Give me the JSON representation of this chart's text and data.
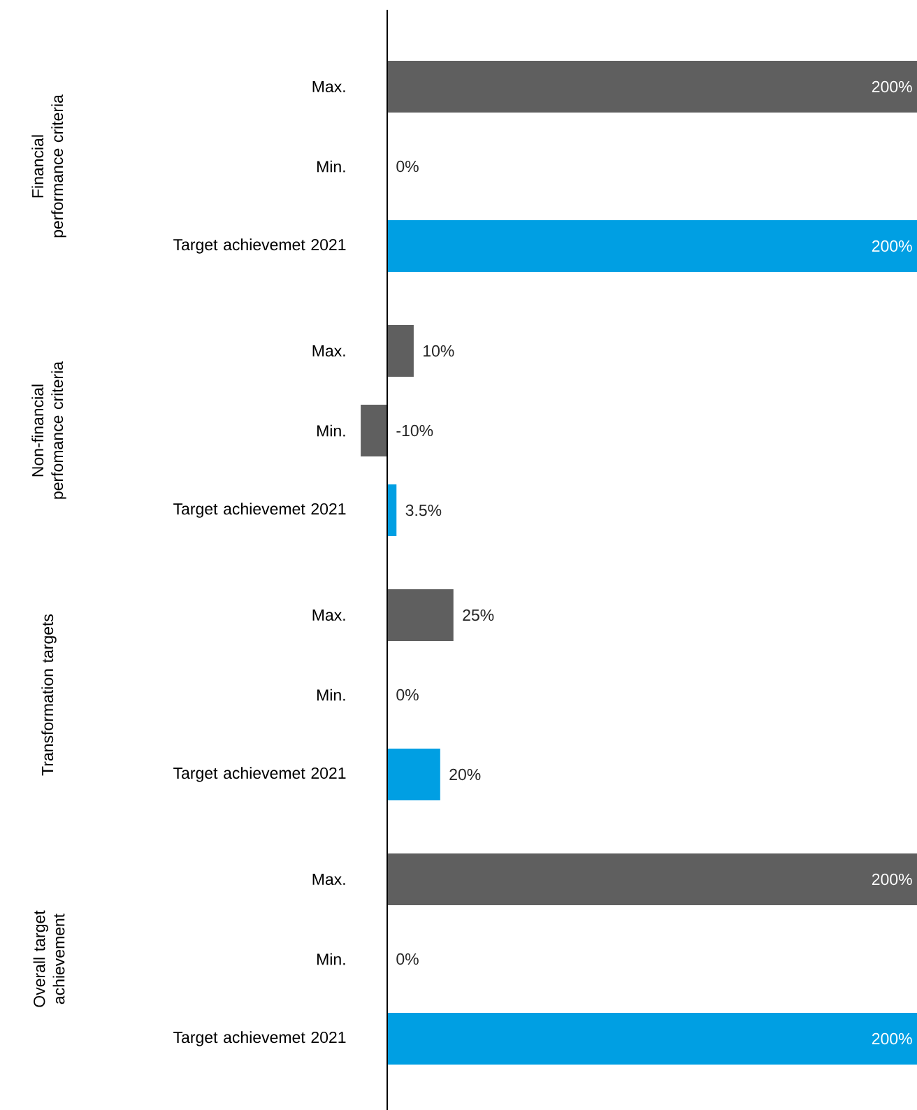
{
  "chart_data": {
    "type": "bar",
    "orientation": "horizontal",
    "categories": [
      "Max.",
      "Min.",
      "Target achievemet 2021",
      "Max.",
      "Min.",
      "Target achievemet 2021",
      "Max.",
      "Min.",
      "Target achievemet 2021",
      "Max.",
      "Min.",
      "Target achievemet 2021"
    ],
    "values": [
      200,
      0,
      200,
      10,
      -10,
      3.5,
      25,
      0,
      20,
      200,
      0,
      200
    ],
    "value_labels": [
      "200%",
      "0%",
      "200%",
      "10%",
      "-10%",
      "3.5%",
      "25%",
      "0%",
      "20%",
      "200%",
      "0%",
      "200%"
    ],
    "colors": [
      "#5f5f5f",
      "#5f5f5f",
      "#009fe3",
      "#5f5f5f",
      "#5f5f5f",
      "#009fe3",
      "#5f5f5f",
      "#5f5f5f",
      "#009fe3",
      "#5f5f5f",
      "#5f5f5f",
      "#009fe3"
    ],
    "annotations": [
      "Financial performance criteria",
      "Non-financial perfomance criteria",
      "Transformation targets",
      "Overall target achievement"
    ]
  }
}
